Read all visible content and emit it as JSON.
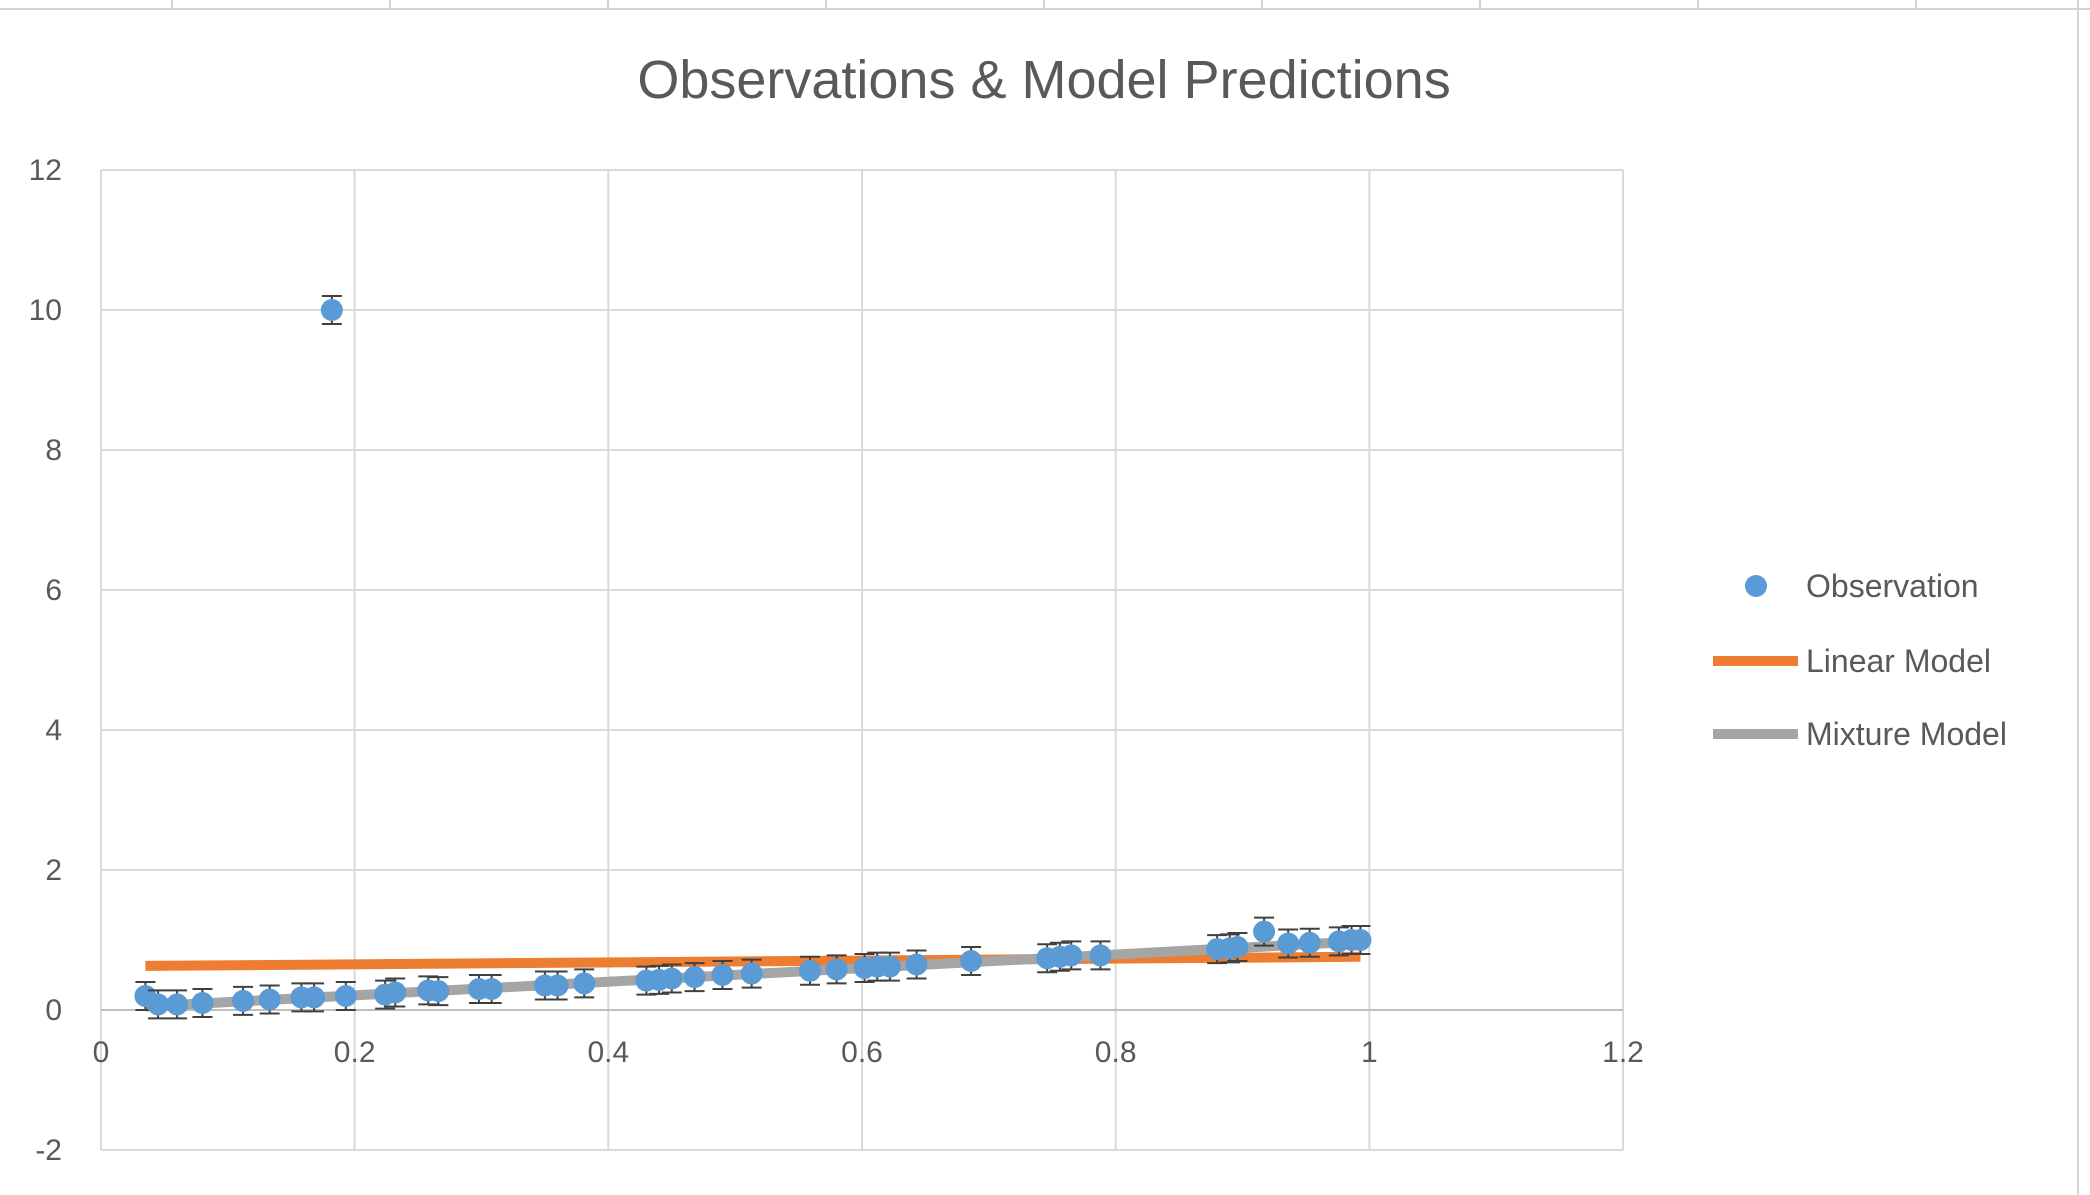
{
  "colors": {
    "observation": "#5b9bd5",
    "linear": "#ed7d31",
    "mixture": "#a5a5a5",
    "error_bar": "#404040",
    "grid": "#d9d9d9",
    "text": "#595959"
  },
  "chart_data": {
    "type": "scatter",
    "title": "Observations & Model Predictions",
    "xlabel": "",
    "ylabel": "",
    "xlim": [
      0,
      1.2
    ],
    "ylim": [
      -2,
      12
    ],
    "x_ticks": [
      0,
      0.2,
      0.4,
      0.6,
      0.8,
      1,
      1.2
    ],
    "x_tick_labels": [
      "0",
      "0.2",
      "0.4",
      "0.6",
      "0.8",
      "1",
      "1.2"
    ],
    "y_ticks": [
      -2,
      0,
      2,
      4,
      6,
      8,
      10,
      12
    ],
    "y_tick_labels": [
      "-2",
      "0",
      "2",
      "4",
      "6",
      "8",
      "10",
      "12"
    ],
    "grid": true,
    "legend_position": "right",
    "error_bar": 0.2,
    "series": [
      {
        "name": "Observation",
        "kind": "scatter",
        "x": [
          0.035,
          0.045,
          0.06,
          0.08,
          0.112,
          0.133,
          0.158,
          0.168,
          0.182,
          0.193,
          0.224,
          0.232,
          0.258,
          0.266,
          0.298,
          0.308,
          0.35,
          0.36,
          0.381,
          0.43,
          0.44,
          0.45,
          0.468,
          0.49,
          0.513,
          0.559,
          0.58,
          0.602,
          0.612,
          0.622,
          0.643,
          0.686,
          0.746,
          0.756,
          0.765,
          0.788,
          0.88,
          0.89,
          0.896,
          0.917,
          0.936,
          0.953,
          0.976,
          0.986,
          0.993
        ],
        "y": [
          0.2,
          0.08,
          0.08,
          0.1,
          0.13,
          0.15,
          0.18,
          0.18,
          10.0,
          0.2,
          0.22,
          0.25,
          0.28,
          0.27,
          0.3,
          0.3,
          0.35,
          0.35,
          0.38,
          0.42,
          0.43,
          0.45,
          0.47,
          0.5,
          0.52,
          0.56,
          0.58,
          0.6,
          0.62,
          0.62,
          0.65,
          0.7,
          0.74,
          0.76,
          0.78,
          0.78,
          0.87,
          0.88,
          0.9,
          1.12,
          0.95,
          0.96,
          0.98,
          1.0,
          1.0
        ]
      },
      {
        "name": "Linear Model",
        "kind": "line",
        "x": [
          0.035,
          0.993
        ],
        "y": [
          0.63,
          0.76
        ]
      },
      {
        "name": "Mixture Model",
        "kind": "line",
        "x": [
          0.035,
          0.993
        ],
        "y": [
          0.05,
          0.98
        ]
      }
    ]
  }
}
